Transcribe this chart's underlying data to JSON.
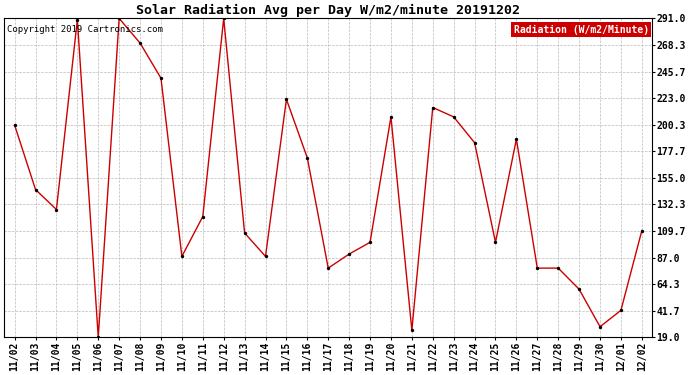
{
  "title": "Solar Radiation Avg per Day W/m2/minute 20191202",
  "copyright_text": "Copyright 2019 Cartronics.com",
  "legend_label": "Radiation (W/m2/Minute)",
  "legend_bg": "#cc0000",
  "legend_fg": "#ffffff",
  "x_labels": [
    "11/02",
    "11/03",
    "11/04",
    "11/05",
    "11/06",
    "11/07",
    "11/08",
    "11/09",
    "11/10",
    "11/11",
    "11/12",
    "11/13",
    "11/14",
    "11/15",
    "11/16",
    "11/17",
    "11/18",
    "11/19",
    "11/20",
    "11/21",
    "11/22",
    "11/23",
    "11/24",
    "11/25",
    "11/26",
    "11/27",
    "11/28",
    "11/29",
    "11/30",
    "12/01",
    "12/02"
  ],
  "y_values": [
    200.0,
    145.0,
    128.0,
    290.0,
    19.0,
    291.0,
    270.0,
    240.0,
    88.0,
    122.0,
    291.0,
    108.0,
    88.0,
    222.0,
    172.0,
    78.0,
    90.0,
    100.0,
    207.0,
    25.0,
    215.0,
    207.0,
    185.0,
    100.0,
    188.0,
    78.0,
    78.0,
    60.0,
    28.0,
    42.0,
    110.0
  ],
  "y_ticks": [
    19.0,
    41.7,
    64.3,
    87.0,
    109.7,
    132.3,
    155.0,
    177.7,
    200.3,
    223.0,
    245.7,
    268.3,
    291.0
  ],
  "line_color": "#cc0000",
  "marker_color": "#000000",
  "bg_color": "#ffffff",
  "plot_bg_color": "#ffffff",
  "grid_color": "#bbbbbb",
  "title_fontsize": 9.5,
  "axis_fontsize": 7,
  "copyright_fontsize": 6.5,
  "legend_fontsize": 7,
  "ylim_min": 19.0,
  "ylim_max": 291.0
}
